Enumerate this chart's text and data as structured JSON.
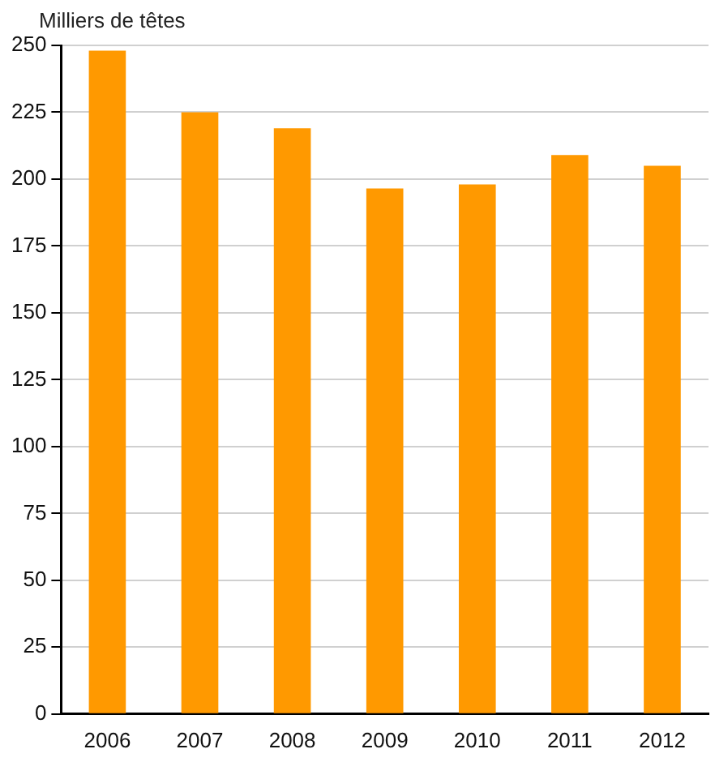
{
  "chart_data": {
    "type": "bar",
    "ylabel": "Milliers de têtes",
    "categories": [
      "2006",
      "2007",
      "2008",
      "2009",
      "2010",
      "2011",
      "2012"
    ],
    "values": [
      248,
      225,
      219,
      196.5,
      198,
      209,
      205
    ],
    "color": "#ff9900",
    "ylim": [
      0,
      250
    ],
    "yticks": [
      0,
      25,
      50,
      75,
      100,
      125,
      150,
      175,
      200,
      225,
      250
    ],
    "grid": "y",
    "legend": false
  }
}
